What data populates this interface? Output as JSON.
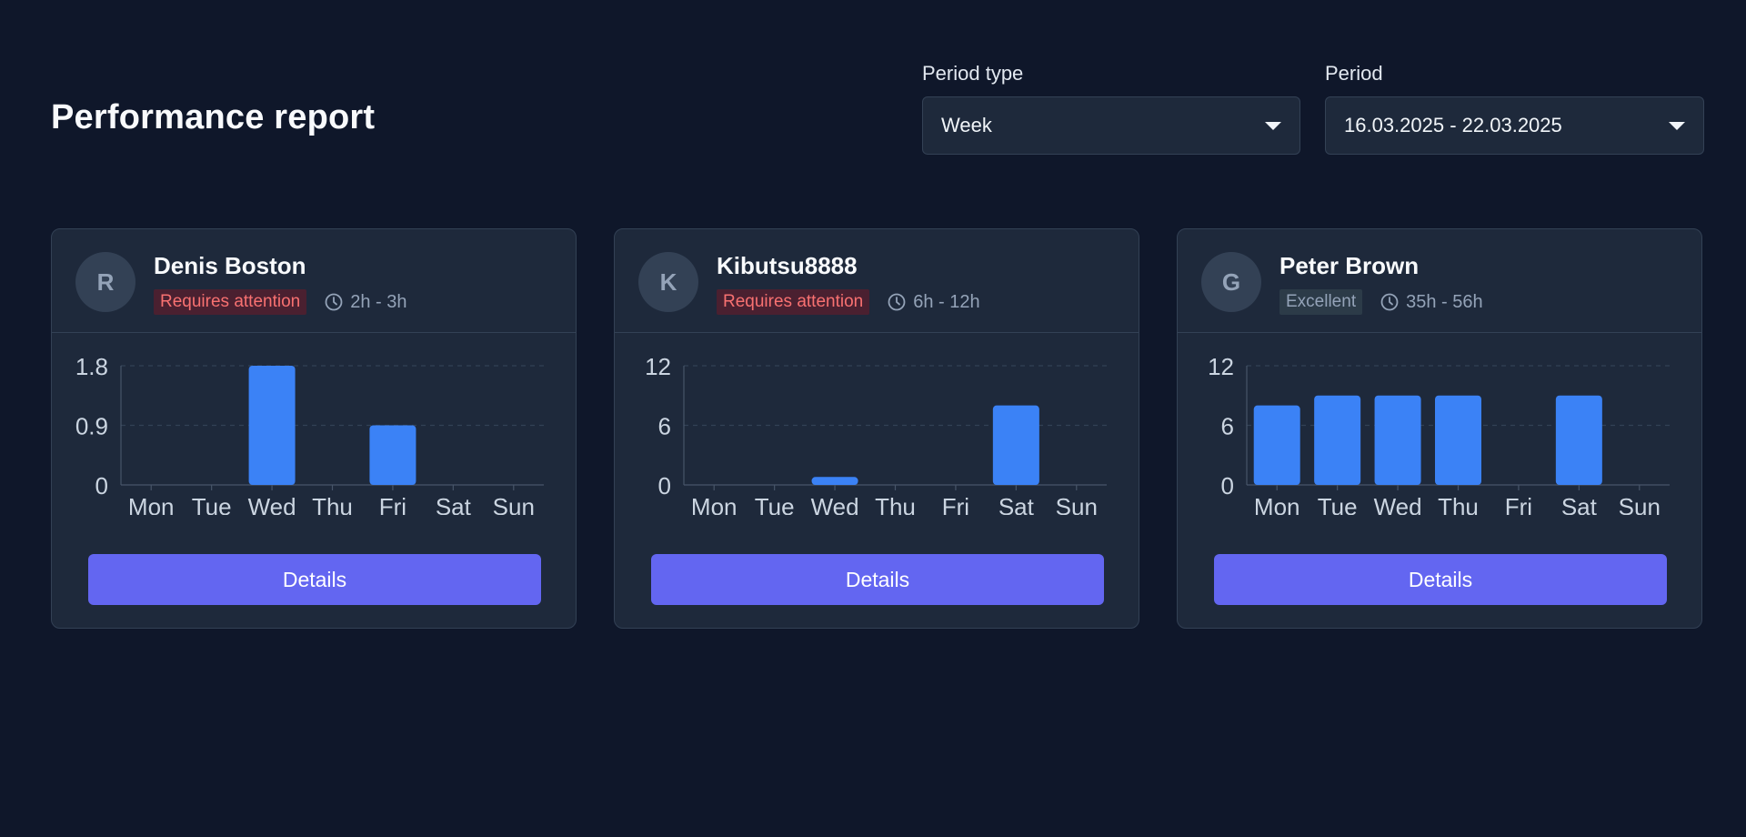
{
  "page": {
    "title": "Performance report"
  },
  "filters": {
    "period_type": {
      "label": "Period type",
      "value": "Week"
    },
    "period": {
      "label": "Period",
      "value": "16.03.2025 - 22.03.2025"
    }
  },
  "colors": {
    "bar": "#3b82f6",
    "button": "#6366f1",
    "warn": "#f87171"
  },
  "cards": [
    {
      "initial": "R",
      "name": "Denis Boston",
      "status": "Requires attention",
      "status_kind": "warn",
      "hours": "2h - 3h",
      "button_label": "Details",
      "chart": {
        "yticks": [
          "0",
          "0.9",
          "1.8"
        ],
        "ymax": 1.8,
        "values": [
          0,
          0,
          1.8,
          0,
          0.9,
          0,
          0
        ]
      }
    },
    {
      "initial": "K",
      "name": "Kibutsu8888",
      "status": "Requires attention",
      "status_kind": "warn",
      "hours": "6h - 12h",
      "button_label": "Details",
      "chart": {
        "yticks": [
          "0",
          "6",
          "12"
        ],
        "ymax": 12,
        "values": [
          0,
          0,
          0.8,
          0,
          0,
          8,
          0
        ]
      }
    },
    {
      "initial": "G",
      "name": "Peter Brown",
      "status": "Excellent",
      "status_kind": "ok",
      "hours": "35h - 56h",
      "button_label": "Details",
      "chart": {
        "yticks": [
          "0",
          "6",
          "12"
        ],
        "ymax": 12,
        "values": [
          8,
          9,
          9,
          9,
          0,
          9,
          0
        ]
      }
    }
  ],
  "chart_data": [
    {
      "type": "bar",
      "title": "Denis Boston",
      "categories": [
        "Mon",
        "Tue",
        "Wed",
        "Thu",
        "Fri",
        "Sat",
        "Sun"
      ],
      "values": [
        0,
        0,
        1.8,
        0,
        0.9,
        0,
        0
      ],
      "ylim": [
        0,
        1.8
      ],
      "xlabel": "",
      "ylabel": ""
    },
    {
      "type": "bar",
      "title": "Kibutsu8888",
      "categories": [
        "Mon",
        "Tue",
        "Wed",
        "Thu",
        "Fri",
        "Sat",
        "Sun"
      ],
      "values": [
        0,
        0,
        0.8,
        0,
        0,
        8,
        0
      ],
      "ylim": [
        0,
        12
      ],
      "xlabel": "",
      "ylabel": ""
    },
    {
      "type": "bar",
      "title": "Peter Brown",
      "categories": [
        "Mon",
        "Tue",
        "Wed",
        "Thu",
        "Fri",
        "Sat",
        "Sun"
      ],
      "values": [
        8,
        9,
        9,
        9,
        0,
        9,
        0
      ],
      "ylim": [
        0,
        12
      ],
      "xlabel": "",
      "ylabel": ""
    }
  ],
  "days": [
    "Mon",
    "Tue",
    "Wed",
    "Thu",
    "Fri",
    "Sat",
    "Sun"
  ]
}
